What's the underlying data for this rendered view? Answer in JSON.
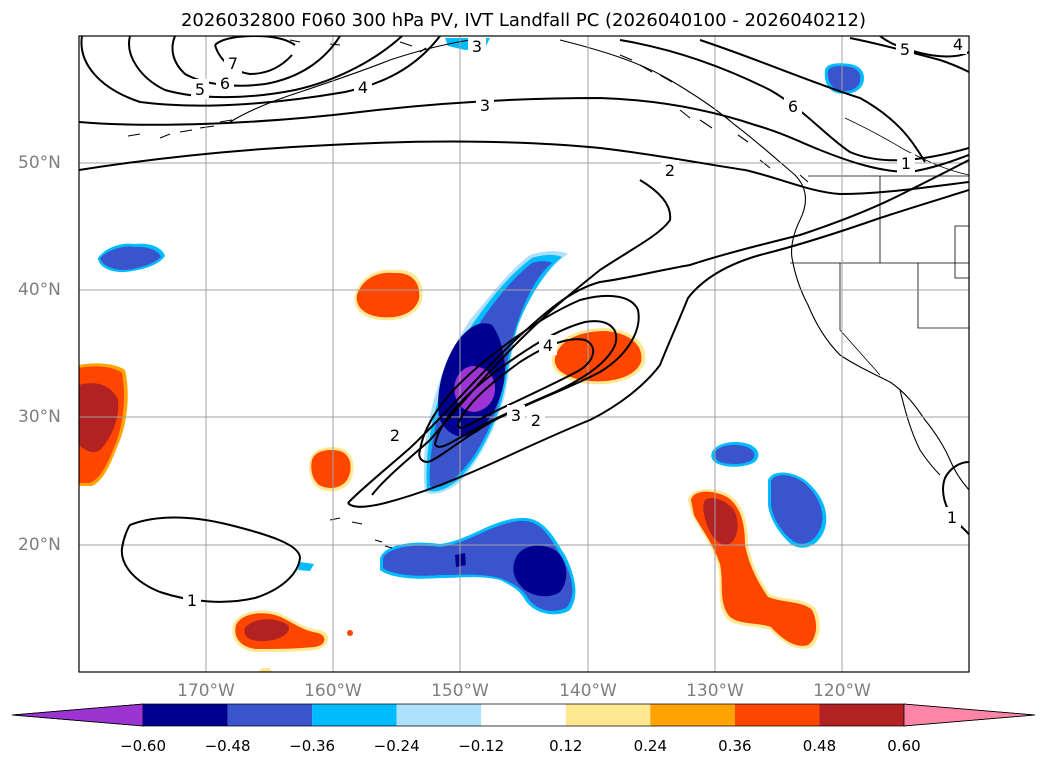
{
  "title": "2026032800 F060 300 hPa PV, IVT Landfall PC (2026040100 - 2026040212)",
  "map": {
    "projection": "PlateCarree",
    "lon_range": [
      -180,
      -110
    ],
    "lat_range": [
      10,
      60
    ],
    "lon_ticks": [
      "170°W",
      "160°W",
      "150°W",
      "140°W",
      "130°W",
      "120°W"
    ],
    "lat_ticks": [
      "50°N",
      "40°N",
      "30°N",
      "20°N"
    ],
    "contour_labels": [
      "7",
      "6",
      "5",
      "4",
      "3",
      "2",
      "1",
      "6",
      "5",
      "4",
      "3",
      "2",
      "4",
      "3",
      "2",
      "1",
      "1",
      "1"
    ]
  },
  "colorbar": {
    "extend": "both",
    "ticks": [
      "−0.60",
      "−0.48",
      "−0.36",
      "−0.24",
      "−0.12",
      "0.12",
      "0.24",
      "0.36",
      "0.48",
      "0.60"
    ],
    "colors": [
      "#9b34d3",
      "#000090",
      "#3a55cc",
      "#00bcff",
      "#ade0fa",
      "#ffffff",
      "#ffe88f",
      "#ffa300",
      "#ff4600",
      "#b22222",
      "#ff85a8"
    ]
  }
}
